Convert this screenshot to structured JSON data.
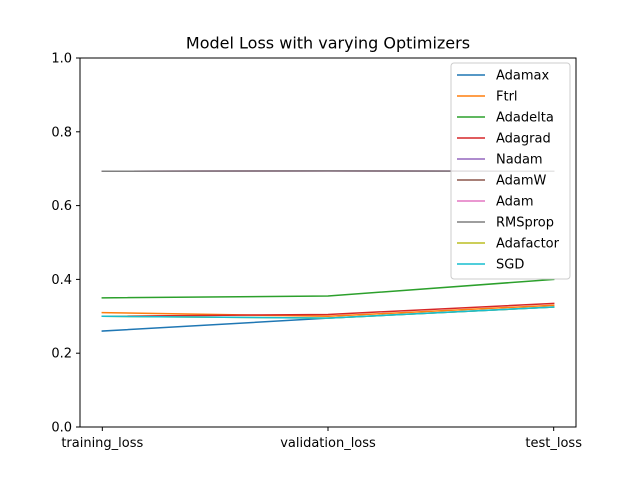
{
  "chart_data": {
    "type": "line",
    "title": "Model Loss with varying Optimizers",
    "xlabel": "",
    "ylabel": "",
    "categories": [
      "training_loss",
      "validation_loss",
      "test_loss"
    ],
    "ylim": [
      0.0,
      1.0
    ],
    "yticks": [
      "0.0",
      "0.2",
      "0.4",
      "0.6",
      "0.8",
      "1.0"
    ],
    "grid": false,
    "legend_position": "top-right",
    "series": [
      {
        "name": "Adamax",
        "color": "#1f77b4",
        "values": [
          0.26,
          0.295,
          0.325
        ]
      },
      {
        "name": "Ftrl",
        "color": "#ff7f0e",
        "values": [
          0.31,
          0.3,
          0.33
        ]
      },
      {
        "name": "Adadelta",
        "color": "#2ca02c",
        "values": [
          0.35,
          0.355,
          0.4
        ]
      },
      {
        "name": "Adagrad",
        "color": "#d62728",
        "values": [
          0.3,
          0.305,
          0.335
        ]
      },
      {
        "name": "Nadam",
        "color": "#9467bd",
        "values": [
          0.693,
          0.694,
          0.693
        ]
      },
      {
        "name": "AdamW",
        "color": "#8c564b",
        "values": [
          0.693,
          0.694,
          0.693
        ]
      },
      {
        "name": "Adam",
        "color": "#e377c2",
        "values": [
          0.693,
          0.694,
          0.693
        ]
      },
      {
        "name": "RMSprop",
        "color": "#7f7f7f",
        "values": [
          0.693,
          0.694,
          0.693
        ]
      },
      {
        "name": "Adafactor",
        "color": "#bcbd22",
        "values": [
          0.3,
          0.295,
          0.325
        ]
      },
      {
        "name": "SGD",
        "color": "#17becf",
        "values": [
          0.3,
          0.295,
          0.325
        ]
      }
    ]
  }
}
